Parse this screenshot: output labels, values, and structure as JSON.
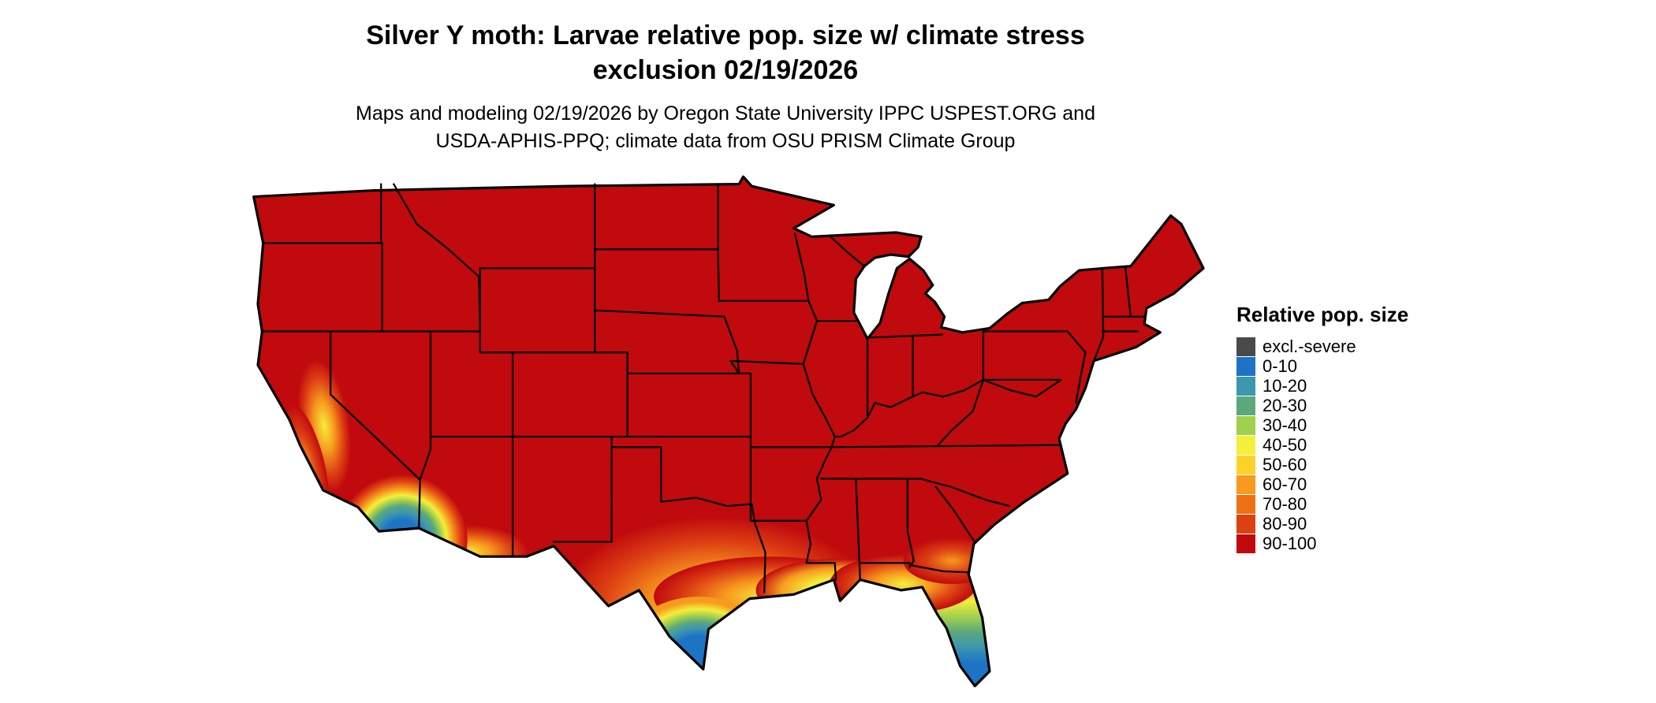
{
  "header": {
    "title_line1": "Silver Y moth: Larvae relative pop. size w/ climate stress",
    "title_line2": "exclusion 02/19/2026",
    "subtitle_line1": "Maps and modeling 02/19/2026 by Oregon State University IPPC USPEST.ORG and",
    "subtitle_line2": "USDA-APHIS-PPQ; climate data from OSU PRISM Climate Group"
  },
  "map": {
    "region": "Contiguous United States",
    "base_color": "#c00a0d",
    "border_color": "#000000"
  },
  "legend": {
    "title": "Relative pop. size",
    "items": [
      {
        "label": "excl.-severe",
        "color": "#4a4a4a"
      },
      {
        "label": "0-10",
        "color": "#1d74c4"
      },
      {
        "label": "10-20",
        "color": "#3d97ae"
      },
      {
        "label": "20-30",
        "color": "#5aa87c"
      },
      {
        "label": "30-40",
        "color": "#a2cf4e"
      },
      {
        "label": "40-50",
        "color": "#f4ef3b"
      },
      {
        "label": "50-60",
        "color": "#fbd229"
      },
      {
        "label": "60-70",
        "color": "#f79a1e"
      },
      {
        "label": "70-80",
        "color": "#ee7113"
      },
      {
        "label": "80-90",
        "color": "#dd4013"
      },
      {
        "label": "90-100",
        "color": "#c00a0d"
      }
    ]
  }
}
